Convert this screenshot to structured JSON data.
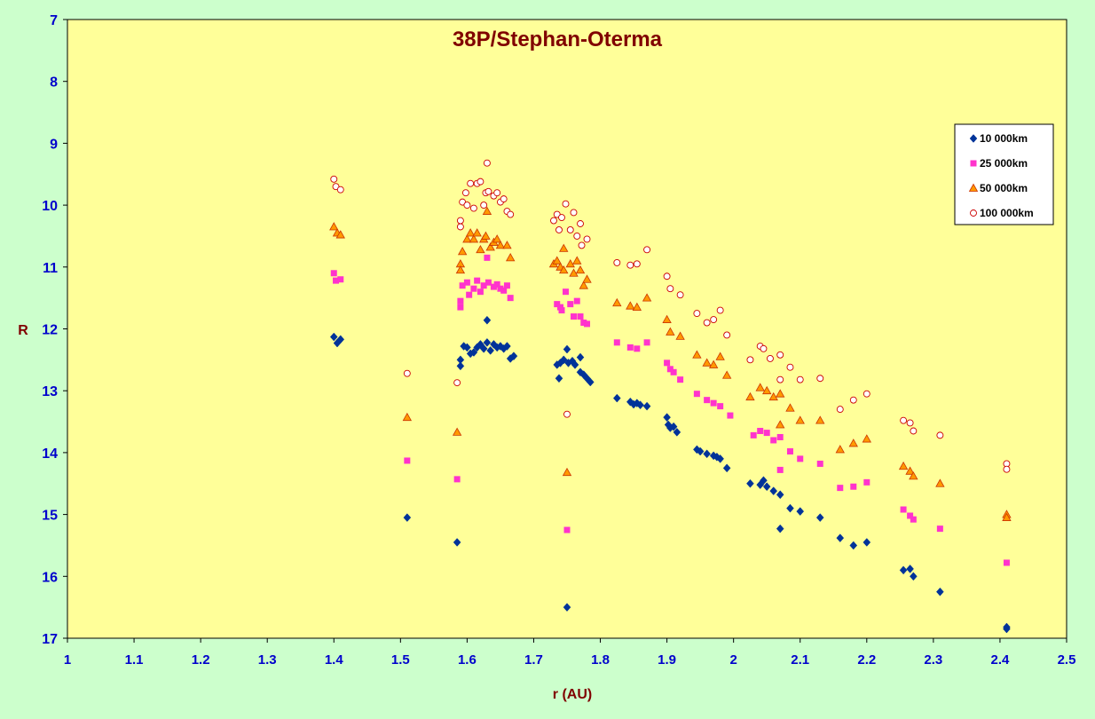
{
  "chart_data": {
    "type": "scatter",
    "title": "38P/Stephan-Oterma",
    "xlabel": "r (AU)",
    "ylabel": "R",
    "xlim": [
      1,
      2.5
    ],
    "ylim": [
      7,
      17
    ],
    "y_inverted": true,
    "x_ticks": [
      "1",
      "1.1",
      "1.2",
      "1.3",
      "1.4",
      "1.5",
      "1.6",
      "1.7",
      "1.8",
      "1.9",
      "2",
      "2.1",
      "2.2",
      "2.3",
      "2.4",
      "2.5"
    ],
    "y_ticks": [
      "7",
      "8",
      "9",
      "10",
      "11",
      "12",
      "13",
      "14",
      "15",
      "16",
      "17"
    ],
    "grid": false,
    "legend_position": "right",
    "colors": {
      "outer_background": "#ccffcc",
      "plot_background": "#ffff99",
      "title": "#800000",
      "axis_label": "#800000",
      "tick_label": "#0000cc"
    },
    "series": [
      {
        "name": "10 000km",
        "marker": "diamond",
        "color": "#003399",
        "points": [
          [
            1.4,
            12.13
          ],
          [
            1.405,
            12.23
          ],
          [
            1.41,
            12.17
          ],
          [
            1.51,
            15.05
          ],
          [
            1.585,
            15.45
          ],
          [
            1.59,
            12.6
          ],
          [
            1.59,
            12.5
          ],
          [
            1.595,
            12.28
          ],
          [
            1.6,
            12.3
          ],
          [
            1.605,
            12.4
          ],
          [
            1.61,
            12.38
          ],
          [
            1.615,
            12.3
          ],
          [
            1.62,
            12.25
          ],
          [
            1.625,
            12.32
          ],
          [
            1.63,
            12.22
          ],
          [
            1.635,
            12.35
          ],
          [
            1.63,
            11.86
          ],
          [
            1.64,
            12.25
          ],
          [
            1.645,
            12.3
          ],
          [
            1.65,
            12.28
          ],
          [
            1.655,
            12.32
          ],
          [
            1.66,
            12.28
          ],
          [
            1.665,
            12.48
          ],
          [
            1.67,
            12.44
          ],
          [
            1.735,
            12.58
          ],
          [
            1.74,
            12.55
          ],
          [
            1.738,
            12.8
          ],
          [
            1.745,
            12.5
          ],
          [
            1.75,
            12.33
          ],
          [
            1.752,
            12.55
          ],
          [
            1.758,
            12.52
          ],
          [
            1.762,
            12.58
          ],
          [
            1.77,
            12.46
          ],
          [
            1.77,
            12.7
          ],
          [
            1.775,
            12.74
          ],
          [
            1.78,
            12.8
          ],
          [
            1.785,
            12.86
          ],
          [
            1.75,
            16.5
          ],
          [
            1.825,
            13.12
          ],
          [
            1.845,
            13.18
          ],
          [
            1.85,
            13.22
          ],
          [
            1.855,
            13.2
          ],
          [
            1.86,
            13.23
          ],
          [
            1.87,
            13.25
          ],
          [
            1.9,
            13.43
          ],
          [
            1.902,
            13.55
          ],
          [
            1.905,
            13.6
          ],
          [
            1.91,
            13.58
          ],
          [
            1.915,
            13.67
          ],
          [
            1.945,
            13.95
          ],
          [
            1.95,
            13.98
          ],
          [
            1.96,
            14.02
          ],
          [
            1.97,
            14.05
          ],
          [
            1.975,
            14.07
          ],
          [
            1.98,
            14.1
          ],
          [
            1.99,
            14.25
          ],
          [
            2.025,
            14.5
          ],
          [
            2.04,
            14.52
          ],
          [
            2.045,
            14.45
          ],
          [
            2.05,
            14.55
          ],
          [
            2.06,
            14.62
          ],
          [
            2.07,
            14.68
          ],
          [
            2.07,
            15.23
          ],
          [
            2.085,
            14.9
          ],
          [
            2.1,
            14.95
          ],
          [
            2.13,
            15.05
          ],
          [
            2.16,
            15.38
          ],
          [
            2.18,
            15.5
          ],
          [
            2.2,
            15.45
          ],
          [
            2.255,
            15.9
          ],
          [
            2.265,
            15.88
          ],
          [
            2.27,
            16.0
          ],
          [
            2.31,
            16.25
          ],
          [
            2.41,
            16.82
          ],
          [
            2.41,
            16.85
          ]
        ]
      },
      {
        "name": "25 000km",
        "marker": "square",
        "color": "#ff33cc",
        "points": [
          [
            1.4,
            11.1
          ],
          [
            1.403,
            11.22
          ],
          [
            1.41,
            11.2
          ],
          [
            1.51,
            14.13
          ],
          [
            1.585,
            14.43
          ],
          [
            1.59,
            11.65
          ],
          [
            1.59,
            11.55
          ],
          [
            1.593,
            11.3
          ],
          [
            1.6,
            11.25
          ],
          [
            1.603,
            11.45
          ],
          [
            1.61,
            11.35
          ],
          [
            1.615,
            11.22
          ],
          [
            1.62,
            11.4
          ],
          [
            1.625,
            11.3
          ],
          [
            1.63,
            10.85
          ],
          [
            1.632,
            11.25
          ],
          [
            1.64,
            11.32
          ],
          [
            1.645,
            11.28
          ],
          [
            1.65,
            11.35
          ],
          [
            1.655,
            11.38
          ],
          [
            1.66,
            11.3
          ],
          [
            1.665,
            11.5
          ],
          [
            1.735,
            11.6
          ],
          [
            1.74,
            11.65
          ],
          [
            1.742,
            11.7
          ],
          [
            1.748,
            11.4
          ],
          [
            1.75,
            15.25
          ],
          [
            1.755,
            11.6
          ],
          [
            1.76,
            11.8
          ],
          [
            1.765,
            11.55
          ],
          [
            1.77,
            11.8
          ],
          [
            1.775,
            11.9
          ],
          [
            1.78,
            11.92
          ],
          [
            1.825,
            12.22
          ],
          [
            1.845,
            12.3
          ],
          [
            1.855,
            12.32
          ],
          [
            1.87,
            12.22
          ],
          [
            1.9,
            12.55
          ],
          [
            1.905,
            12.65
          ],
          [
            1.91,
            12.7
          ],
          [
            1.92,
            12.82
          ],
          [
            1.945,
            13.05
          ],
          [
            1.96,
            13.15
          ],
          [
            1.97,
            13.2
          ],
          [
            1.98,
            13.25
          ],
          [
            1.995,
            13.4
          ],
          [
            2.03,
            13.72
          ],
          [
            2.04,
            13.65
          ],
          [
            2.05,
            13.68
          ],
          [
            2.06,
            13.8
          ],
          [
            2.07,
            13.75
          ],
          [
            2.07,
            14.28
          ],
          [
            2.085,
            13.98
          ],
          [
            2.1,
            14.1
          ],
          [
            2.13,
            14.18
          ],
          [
            2.16,
            14.57
          ],
          [
            2.18,
            14.55
          ],
          [
            2.2,
            14.48
          ],
          [
            2.255,
            14.92
          ],
          [
            2.265,
            15.02
          ],
          [
            2.27,
            15.08
          ],
          [
            2.31,
            15.23
          ],
          [
            2.41,
            15.78
          ]
        ]
      },
      {
        "name": "50 000km",
        "marker": "triangle",
        "color": "#ff9900",
        "points": [
          [
            1.4,
            10.35
          ],
          [
            1.405,
            10.45
          ],
          [
            1.41,
            10.48
          ],
          [
            1.51,
            13.43
          ],
          [
            1.585,
            13.67
          ],
          [
            1.59,
            10.95
          ],
          [
            1.59,
            11.05
          ],
          [
            1.593,
            10.75
          ],
          [
            1.6,
            10.55
          ],
          [
            1.605,
            10.45
          ],
          [
            1.61,
            10.55
          ],
          [
            1.615,
            10.45
          ],
          [
            1.62,
            10.72
          ],
          [
            1.625,
            10.55
          ],
          [
            1.628,
            10.5
          ],
          [
            1.63,
            10.1
          ],
          [
            1.635,
            10.68
          ],
          [
            1.64,
            10.6
          ],
          [
            1.645,
            10.55
          ],
          [
            1.65,
            10.65
          ],
          [
            1.66,
            10.65
          ],
          [
            1.665,
            10.85
          ],
          [
            1.73,
            10.95
          ],
          [
            1.735,
            10.9
          ],
          [
            1.74,
            11.0
          ],
          [
            1.745,
            10.7
          ],
          [
            1.745,
            11.05
          ],
          [
            1.75,
            14.32
          ],
          [
            1.755,
            10.95
          ],
          [
            1.76,
            11.1
          ],
          [
            1.765,
            10.9
          ],
          [
            1.77,
            11.05
          ],
          [
            1.775,
            11.3
          ],
          [
            1.78,
            11.2
          ],
          [
            1.825,
            11.58
          ],
          [
            1.845,
            11.63
          ],
          [
            1.855,
            11.65
          ],
          [
            1.87,
            11.5
          ],
          [
            1.9,
            11.85
          ],
          [
            1.905,
            12.05
          ],
          [
            1.92,
            12.12
          ],
          [
            1.945,
            12.42
          ],
          [
            1.96,
            12.55
          ],
          [
            1.97,
            12.58
          ],
          [
            1.98,
            12.45
          ],
          [
            1.99,
            12.75
          ],
          [
            2.025,
            13.1
          ],
          [
            2.04,
            12.95
          ],
          [
            2.05,
            13.0
          ],
          [
            2.06,
            13.1
          ],
          [
            2.07,
            13.05
          ],
          [
            2.07,
            13.55
          ],
          [
            2.085,
            13.28
          ],
          [
            2.1,
            13.48
          ],
          [
            2.13,
            13.48
          ],
          [
            2.16,
            13.95
          ],
          [
            2.18,
            13.85
          ],
          [
            2.2,
            13.78
          ],
          [
            2.255,
            14.22
          ],
          [
            2.265,
            14.3
          ],
          [
            2.27,
            14.38
          ],
          [
            2.31,
            14.5
          ],
          [
            2.41,
            15.0
          ],
          [
            2.41,
            15.05
          ]
        ]
      },
      {
        "name": "100 000km",
        "marker": "circle",
        "color": "#cc0000",
        "points": [
          [
            1.4,
            9.58
          ],
          [
            1.403,
            9.7
          ],
          [
            1.41,
            9.75
          ],
          [
            1.51,
            12.72
          ],
          [
            1.585,
            12.87
          ],
          [
            1.59,
            10.25
          ],
          [
            1.59,
            10.35
          ],
          [
            1.593,
            9.95
          ],
          [
            1.598,
            9.8
          ],
          [
            1.6,
            10.0
          ],
          [
            1.605,
            9.65
          ],
          [
            1.61,
            10.05
          ],
          [
            1.615,
            9.65
          ],
          [
            1.62,
            9.62
          ],
          [
            1.625,
            10.0
          ],
          [
            1.628,
            9.8
          ],
          [
            1.63,
            9.32
          ],
          [
            1.632,
            9.78
          ],
          [
            1.64,
            9.85
          ],
          [
            1.645,
            9.8
          ],
          [
            1.65,
            9.95
          ],
          [
            1.655,
            9.9
          ],
          [
            1.66,
            10.1
          ],
          [
            1.665,
            10.15
          ],
          [
            1.73,
            10.25
          ],
          [
            1.735,
            10.15
          ],
          [
            1.738,
            10.4
          ],
          [
            1.742,
            10.2
          ],
          [
            1.748,
            9.98
          ],
          [
            1.75,
            13.38
          ],
          [
            1.755,
            10.4
          ],
          [
            1.76,
            10.12
          ],
          [
            1.765,
            10.5
          ],
          [
            1.77,
            10.3
          ],
          [
            1.772,
            10.65
          ],
          [
            1.78,
            10.55
          ],
          [
            1.825,
            10.93
          ],
          [
            1.845,
            10.97
          ],
          [
            1.855,
            10.95
          ],
          [
            1.87,
            10.72
          ],
          [
            1.9,
            11.15
          ],
          [
            1.905,
            11.35
          ],
          [
            1.92,
            11.45
          ],
          [
            1.945,
            11.75
          ],
          [
            1.96,
            11.9
          ],
          [
            1.97,
            11.85
          ],
          [
            1.98,
            11.7
          ],
          [
            1.99,
            12.1
          ],
          [
            2.025,
            12.5
          ],
          [
            2.04,
            12.28
          ],
          [
            2.045,
            12.32
          ],
          [
            2.055,
            12.48
          ],
          [
            2.07,
            12.42
          ],
          [
            2.07,
            12.82
          ],
          [
            2.085,
            12.62
          ],
          [
            2.1,
            12.82
          ],
          [
            2.13,
            12.8
          ],
          [
            2.16,
            13.3
          ],
          [
            2.18,
            13.15
          ],
          [
            2.2,
            13.05
          ],
          [
            2.255,
            13.48
          ],
          [
            2.265,
            13.52
          ],
          [
            2.27,
            13.65
          ],
          [
            2.31,
            13.72
          ],
          [
            2.41,
            14.18
          ],
          [
            2.41,
            14.27
          ]
        ]
      }
    ]
  }
}
